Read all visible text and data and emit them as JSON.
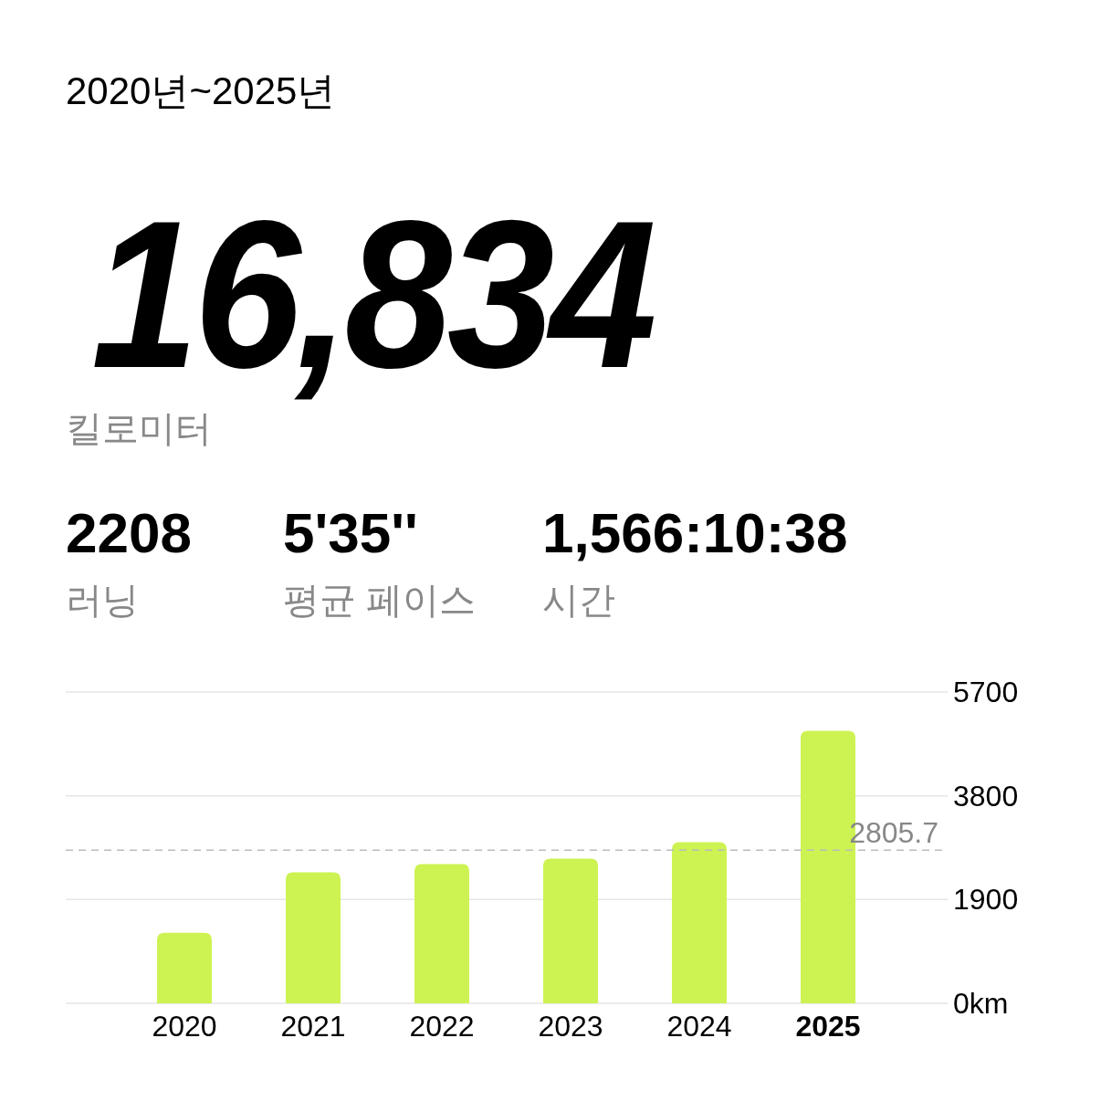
{
  "chart_data": [
    {
      "type": "other",
      "title": "2020년~2025년",
      "annotations": [
        "16,834",
        "킬로미터",
        "2208",
        "러닝",
        "5'35''",
        "평균 페이스",
        "1,566:10:38",
        "시간"
      ]
    },
    {
      "type": "bar",
      "categories": [
        "2020",
        "2021",
        "2022",
        "2023",
        "2024",
        "2025"
      ],
      "values": [
        1290,
        2400,
        2550,
        2650,
        2950,
        4990
      ],
      "color": "#cdf352",
      "ylim": [
        0,
        5700
      ],
      "yticks": [
        {
          "value": 0,
          "label": "0km"
        },
        1900,
        3800,
        5700
      ],
      "grid": "y",
      "ref_lines": [
        {
          "axis": "y",
          "value": 2805.7,
          "label": "2805.7",
          "color": "#bbbbbb",
          "line_style": "dashed"
        }
      ]
    }
  ]
}
